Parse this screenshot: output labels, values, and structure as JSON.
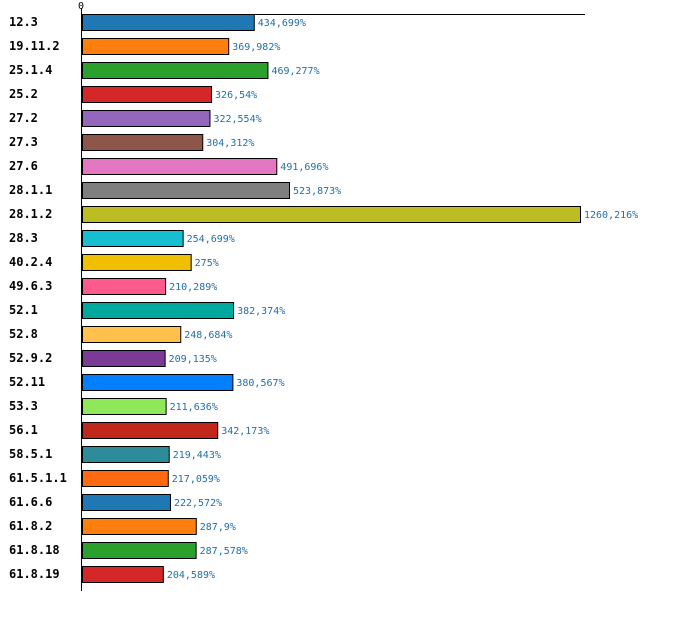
{
  "chart_data": {
    "type": "bar",
    "orientation": "horizontal",
    "title": "",
    "xlabel": "",
    "ylabel": "",
    "x_ticks": [
      "0"
    ],
    "xlim": [
      0,
      1260.216
    ],
    "grid": false,
    "legend": "none",
    "categories": [
      "12.3",
      "19.11.2",
      "25.1.4",
      "25.2",
      "27.2",
      "27.3",
      "27.6",
      "28.1.1",
      "28.1.2",
      "28.3",
      "40.2.4",
      "49.6.3",
      "52.1",
      "52.8",
      "52.9.2",
      "52.11",
      "53.3",
      "56.1",
      "58.5.1",
      "61.5.1.1",
      "61.6.6",
      "61.8.2",
      "61.8.18",
      "61.8.19"
    ],
    "values": [
      434.699,
      369.982,
      469.277,
      326.54,
      322.554,
      304.312,
      491.696,
      523.873,
      1260.216,
      254.699,
      275,
      210.289,
      382.374,
      248.684,
      209.135,
      380.567,
      211.636,
      342.173,
      219.443,
      217.059,
      222.572,
      287.9,
      287.578,
      204.589
    ],
    "value_labels": [
      "434,699%",
      "369,982%",
      "469,277%",
      "326,54%",
      "322,554%",
      "304,312%",
      "491,696%",
      "523,873%",
      "1260,216%",
      "254,699%",
      "275%",
      "210,289%",
      "382,374%",
      "248,684%",
      "209,135%",
      "380,567%",
      "211,636%",
      "342,173%",
      "219,443%",
      "217,059%",
      "222,572%",
      "287,9%",
      "287,578%",
      "204,589%"
    ],
    "colors": [
      "#1f77b4",
      "#ff7f0e",
      "#2ca02c",
      "#d62728",
      "#9467bd",
      "#8c564b",
      "#e377c2",
      "#7f7f7f",
      "#bcbd22",
      "#17becf",
      "#f0c000",
      "#ff5a8c",
      "#00a99d",
      "#ffc04c",
      "#7a3a96",
      "#0080ff",
      "#8ee85a",
      "#c0281c",
      "#2e8b9a",
      "#ff6a10",
      "#1f77b4",
      "#ff7f0e",
      "#2ca02c",
      "#d62728"
    ]
  }
}
